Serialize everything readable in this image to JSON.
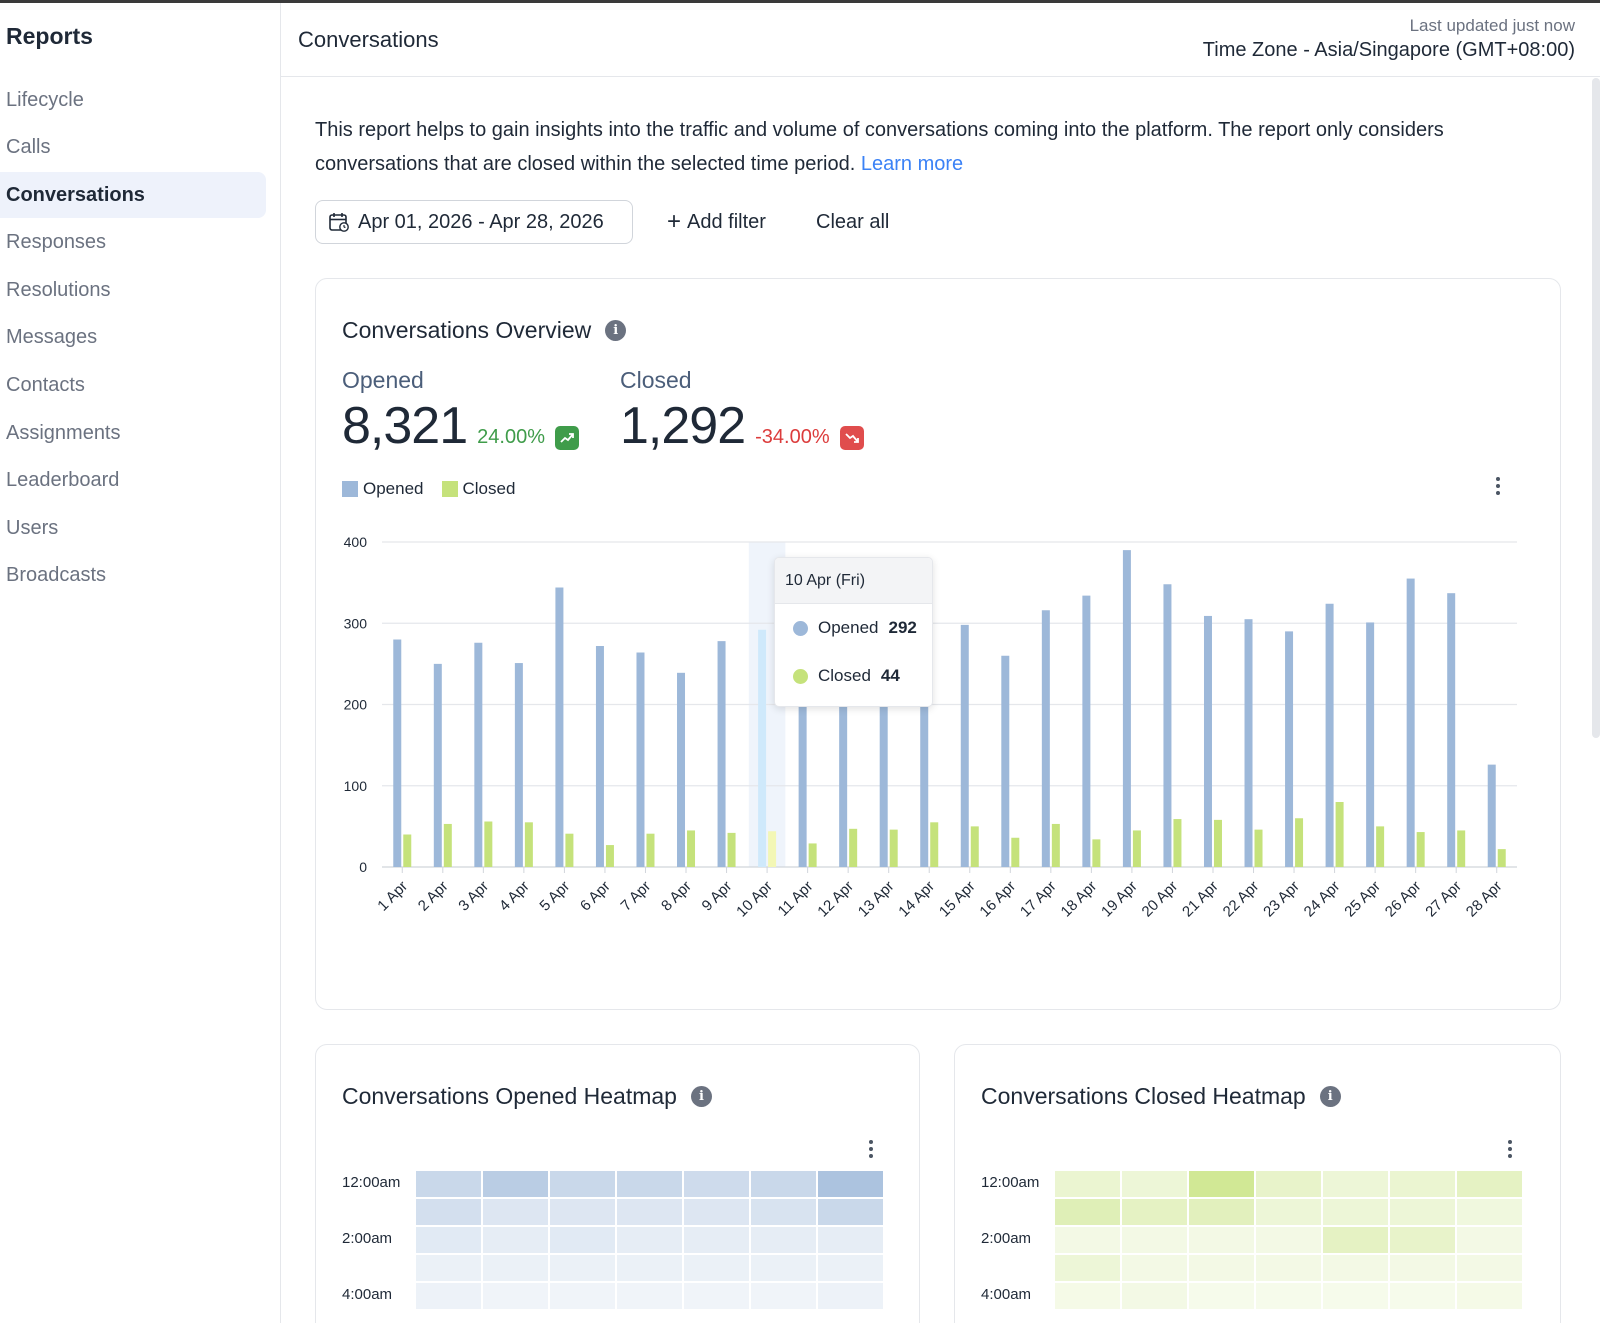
{
  "sidebar": {
    "title": "Reports",
    "items": [
      {
        "label": "Lifecycle",
        "active": false
      },
      {
        "label": "Calls",
        "active": false
      },
      {
        "label": "Conversations",
        "active": true
      },
      {
        "label": "Responses",
        "active": false
      },
      {
        "label": "Resolutions",
        "active": false
      },
      {
        "label": "Messages",
        "active": false
      },
      {
        "label": "Contacts",
        "active": false
      },
      {
        "label": "Assignments",
        "active": false
      },
      {
        "label": "Leaderboard",
        "active": false
      },
      {
        "label": "Users",
        "active": false
      },
      {
        "label": "Broadcasts",
        "active": false
      }
    ]
  },
  "header": {
    "title": "Conversations",
    "last_updated": "Last updated just now",
    "timezone": "Time Zone - Asia/Singapore (GMT+08:00)"
  },
  "main": {
    "description": "This report helps to gain insights into the traffic and volume of conversations coming into the platform. The report only considers conversations that are closed within the selected time period.",
    "learn_more": "Learn more",
    "date_range": "Apr 01, 2026 - Apr 28, 2026",
    "add_filter": "Add filter",
    "clear_all": "Clear all"
  },
  "overview": {
    "title": "Conversations Overview",
    "opened": {
      "label": "Opened",
      "value": "8,321",
      "change": "24.00%",
      "trend": "up"
    },
    "closed": {
      "label": "Closed",
      "value": "1,292",
      "change": "-34.00%",
      "trend": "down"
    },
    "tooltip": {
      "date": "10 Apr (Fri)",
      "opened_label": "Opened",
      "opened_value": "292",
      "closed_label": "Closed",
      "closed_value": "44"
    }
  },
  "chart_data": {
    "type": "bar",
    "title": "",
    "xlabel": "",
    "ylabel": "",
    "ylim": [
      0,
      400
    ],
    "yticks": [
      0,
      100,
      200,
      300,
      400
    ],
    "grid": true,
    "legend": "top-left",
    "highlighted_category": "10 Apr",
    "categories": [
      "1 Apr",
      "2 Apr",
      "3 Apr",
      "4 Apr",
      "5 Apr",
      "6 Apr",
      "7 Apr",
      "8 Apr",
      "9 Apr",
      "10 Apr",
      "11 Apr",
      "12 Apr",
      "13 Apr",
      "14 Apr",
      "15 Apr",
      "16 Apr",
      "17 Apr",
      "18 Apr",
      "19 Apr",
      "20 Apr",
      "21 Apr",
      "22 Apr",
      "23 Apr",
      "24 Apr",
      "25 Apr",
      "26 Apr",
      "27 Apr",
      "28 Apr"
    ],
    "series": [
      {
        "name": "Opened",
        "color": "#9db8d9",
        "values": [
          280,
          250,
          276,
          251,
          344,
          272,
          264,
          239,
          278,
          292,
          305,
          318,
          290,
          310,
          298,
          260,
          316,
          334,
          390,
          348,
          309,
          305,
          290,
          324,
          301,
          355,
          337,
          126
        ]
      },
      {
        "name": "Closed",
        "color": "#c5e27b",
        "values": [
          40,
          53,
          56,
          55,
          41,
          27,
          41,
          45,
          42,
          44,
          29,
          47,
          46,
          55,
          50,
          36,
          53,
          34,
          45,
          59,
          58,
          46,
          60,
          80,
          50,
          43,
          45,
          22
        ]
      }
    ]
  },
  "heatmaps": {
    "opened": {
      "title": "Conversations Opened Heatmap",
      "row_labels": [
        "12:00am",
        "2:00am",
        "4:00am"
      ],
      "base_color": "#9db8d9",
      "intensity": [
        [
          0.55,
          0.7,
          0.55,
          0.55,
          0.5,
          0.55,
          0.85
        ],
        [
          0.45,
          0.35,
          0.35,
          0.35,
          0.35,
          0.4,
          0.55
        ],
        [
          0.3,
          0.25,
          0.3,
          0.25,
          0.25,
          0.25,
          0.25
        ],
        [
          0.2,
          0.2,
          0.2,
          0.2,
          0.2,
          0.2,
          0.2
        ],
        [
          0.18,
          0.15,
          0.15,
          0.15,
          0.15,
          0.15,
          0.18
        ]
      ]
    },
    "closed": {
      "title": "Conversations Closed Heatmap",
      "row_labels": [
        "12:00am",
        "2:00am",
        "4:00am"
      ],
      "base_color": "#c5e27b",
      "intensity": [
        [
          0.35,
          0.3,
          0.8,
          0.4,
          0.3,
          0.35,
          0.45
        ],
        [
          0.55,
          0.45,
          0.5,
          0.3,
          0.3,
          0.3,
          0.25
        ],
        [
          0.2,
          0.2,
          0.2,
          0.2,
          0.45,
          0.4,
          0.2
        ],
        [
          0.3,
          0.2,
          0.2,
          0.2,
          0.2,
          0.2,
          0.2
        ],
        [
          0.18,
          0.2,
          0.15,
          0.15,
          0.15,
          0.15,
          0.18
        ]
      ]
    }
  }
}
